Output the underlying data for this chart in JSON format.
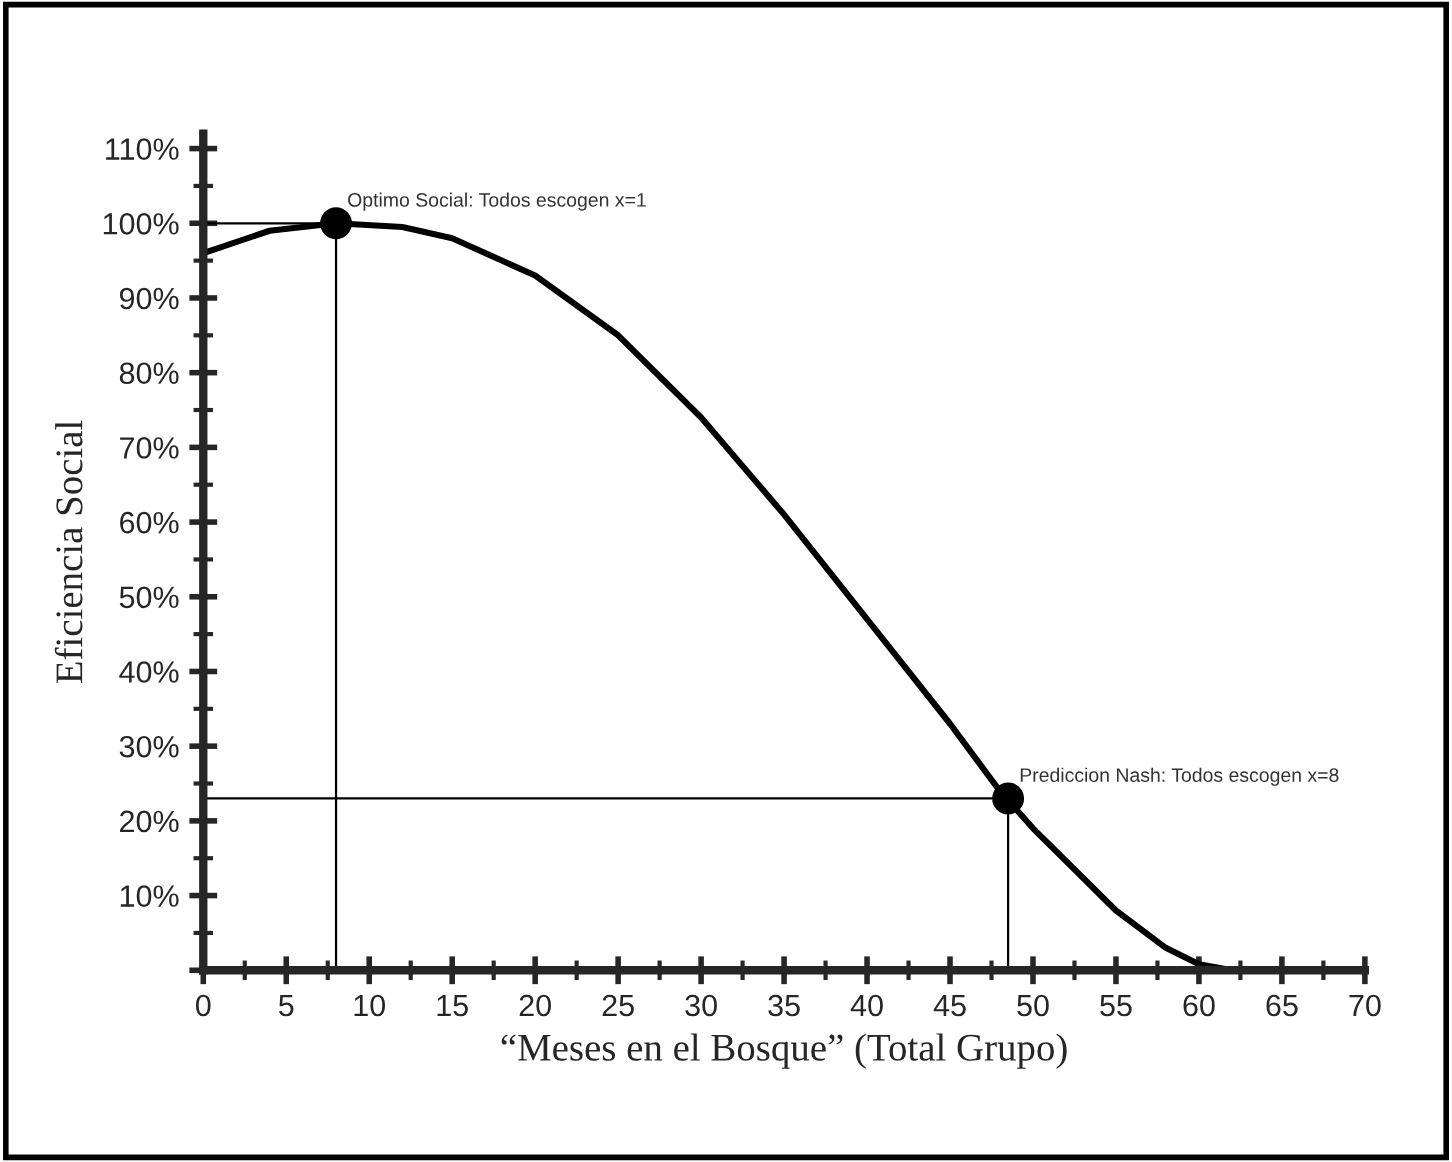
{
  "chart_data": {
    "type": "line",
    "xlabel": "“Meses en el Bosque” (Total Grupo)",
    "ylabel": "Eficiencia Social",
    "series": [
      {
        "color": "#000000",
        "marker": "none",
        "x": [
          0,
          4,
          8,
          12,
          15,
          20,
          25,
          30,
          35,
          40,
          45,
          48,
          50,
          55,
          58,
          60,
          62
        ],
        "values": [
          96,
          99,
          100,
          99.5,
          98,
          93,
          85,
          74,
          61,
          47,
          33,
          24,
          19,
          8,
          3,
          0.8,
          0
        ]
      },
      {
        "type": "scatter",
        "marker": "circle",
        "color": "#000000",
        "x": [
          8,
          48.5
        ],
        "values": [
          100,
          23
        ]
      }
    ],
    "annotations": [
      {
        "text": "Optimo Social: Todos escogen x=1",
        "x": 8,
        "y": 100
      },
      {
        "text": "Prediccion Nash: Todos escogen x=8",
        "x": 48.5,
        "y": 23
      }
    ],
    "ref_lines": [
      {
        "axis": "x",
        "value": 8,
        "color": "#000000"
      },
      {
        "axis": "y",
        "value": 100,
        "color": "#000000"
      },
      {
        "axis": "x",
        "value": 48.5,
        "color": "#000000"
      },
      {
        "axis": "y",
        "value": 23,
        "color": "#000000"
      }
    ],
    "xlim": [
      0,
      70
    ],
    "ylim": [
      0,
      112
    ],
    "xticks": [
      0,
      5,
      10,
      15,
      20,
      25,
      30,
      35,
      40,
      45,
      50,
      55,
      60,
      65,
      70
    ],
    "yticks": [
      {
        "value": 0,
        "label": null
      },
      {
        "value": 10,
        "label": "10%"
      },
      {
        "value": 20,
        "label": "20%"
      },
      {
        "value": 30,
        "label": "30%"
      },
      {
        "value": 40,
        "label": "40%"
      },
      {
        "value": 50,
        "label": "50%"
      },
      {
        "value": 60,
        "label": "60%"
      },
      {
        "value": 70,
        "label": "70%"
      },
      {
        "value": 80,
        "label": "80%"
      },
      {
        "value": 90,
        "label": "90%"
      },
      {
        "value": 100,
        "label": "100%"
      },
      {
        "value": 110,
        "label": "110%"
      }
    ],
    "grid": false,
    "legend": false,
    "line_style": "solid"
  }
}
